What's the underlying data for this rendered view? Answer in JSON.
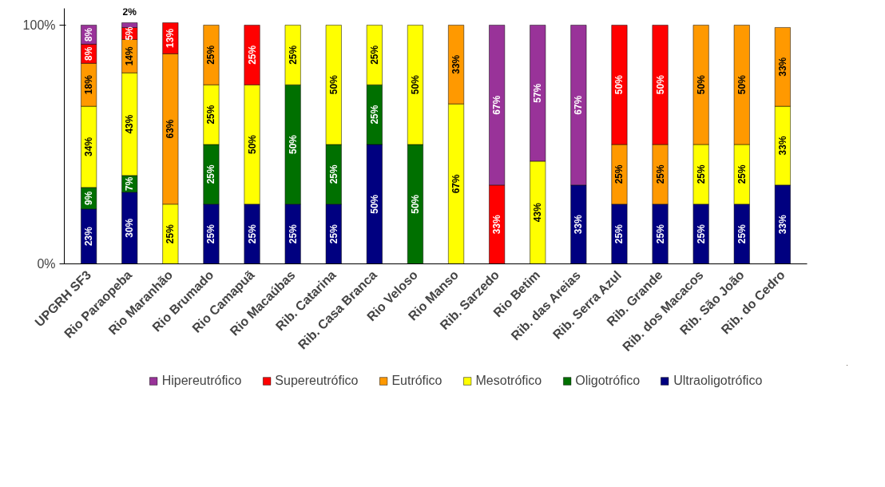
{
  "chart_data": {
    "type": "bar",
    "stacked": true,
    "legend": "bottom",
    "grid": false,
    "categories": [
      "UPGRH SF3",
      "Rio Paraopeba",
      "Rio Maranhão",
      "Rio Brumado",
      "Rio Camapuã",
      "Rio Macaúbas",
      "Rib. Catarina",
      "Rib. Casa Branca",
      "Rio Veloso",
      "Rio Manso",
      "Rib. Sarzedo",
      "Rio Betim",
      "Rib. das Areias",
      "Rib. Serra Azul",
      "Rib. Grande",
      "Rib. dos Macacos",
      "Rib. São João",
      "Rib. do Cedro"
    ],
    "ylim": [
      0,
      107
    ],
    "yticks": [
      {
        "value": 0,
        "label": "0%"
      },
      {
        "value": 100,
        "label": "100%"
      }
    ],
    "series": [
      {
        "name": "Ultraoligotrófico",
        "color": "#000080",
        "values": [
          23,
          30,
          null,
          25,
          25,
          25,
          25,
          50,
          null,
          null,
          null,
          null,
          33,
          25,
          25,
          25,
          25,
          33
        ],
        "value_labels": [
          "23%",
          "30%",
          null,
          "25%",
          "25%",
          "25%",
          "25%",
          "50%",
          null,
          null,
          null,
          null,
          "33%",
          "25%",
          "25%",
          "25%",
          "25%",
          "33%"
        ]
      },
      {
        "name": "Oligotrófico",
        "color": "#007000",
        "values": [
          9,
          7,
          null,
          25,
          null,
          50,
          25,
          25,
          50,
          null,
          null,
          null,
          null,
          null,
          null,
          null,
          null,
          null
        ],
        "value_labels": [
          "9%",
          "7%",
          null,
          "25%",
          null,
          "50%",
          "25%",
          "25%",
          "50%",
          null,
          null,
          null,
          null,
          null,
          null,
          null,
          null,
          null
        ]
      },
      {
        "name": "Mesotrófico",
        "color": "#ffff00",
        "values": [
          34,
          43,
          25,
          25,
          50,
          25,
          50,
          25,
          50,
          67,
          null,
          43,
          null,
          null,
          null,
          25,
          25,
          33
        ],
        "value_labels": [
          "34%",
          "43%",
          "25%",
          "25%",
          "50%",
          "25%",
          "50%",
          "25%",
          "50%",
          "67%",
          null,
          "43%",
          null,
          null,
          null,
          "25%",
          "25%",
          "33%"
        ]
      },
      {
        "name": "Eutrófico",
        "color": "#ff9900",
        "values": [
          18,
          14,
          63,
          25,
          null,
          null,
          null,
          null,
          null,
          33,
          null,
          null,
          null,
          25,
          25,
          50,
          50,
          33
        ],
        "value_labels": [
          "18%",
          "14%",
          "63%",
          "25%",
          null,
          null,
          null,
          null,
          null,
          "33%",
          null,
          null,
          null,
          "25%",
          "25%",
          "50%",
          "50%",
          "33%"
        ]
      },
      {
        "name": "Supereutrófico",
        "color": "#ff0000",
        "values": [
          8,
          5,
          13,
          null,
          25,
          null,
          null,
          null,
          null,
          null,
          33,
          null,
          null,
          50,
          50,
          null,
          null,
          null
        ],
        "value_labels": [
          "8%",
          "5%",
          "13%",
          null,
          "25%",
          null,
          null,
          null,
          null,
          null,
          "33%",
          null,
          null,
          "50%",
          "50%",
          null,
          null,
          null
        ]
      },
      {
        "name": "Hipereutrófico",
        "color": "#993399",
        "values": [
          8,
          2,
          null,
          null,
          null,
          null,
          null,
          null,
          null,
          null,
          67,
          57,
          67,
          null,
          null,
          null,
          null,
          null
        ],
        "value_labels": [
          "8%",
          "2%",
          null,
          null,
          null,
          null,
          null,
          null,
          null,
          null,
          "67%",
          "57%",
          "67%",
          null,
          null,
          null,
          null,
          null
        ]
      }
    ]
  }
}
